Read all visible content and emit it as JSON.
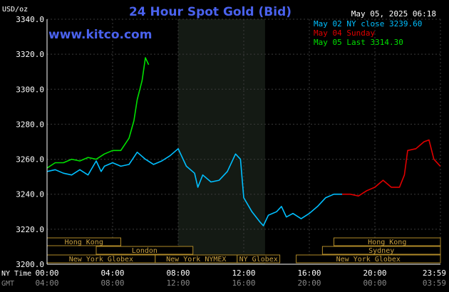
{
  "chart_data": {
    "type": "line",
    "title": "24 Hour Spot Gold (Bid)",
    "watermark": "www.kitco.com",
    "y_unit_label": "USD/oz",
    "timestamp": "May 05, 2025 06:18",
    "ylim": [
      3200,
      3340
    ],
    "y_ticks": [
      "3340.0",
      "3320.0",
      "3300.0",
      "3280.0",
      "3260.0",
      "3240.0",
      "3220.0",
      "3200.0"
    ],
    "x_hours": [
      0,
      24
    ],
    "x_ticks_ny": [
      "00:00",
      "04:00",
      "08:00",
      "12:00",
      "16:00",
      "20:00",
      "23:59"
    ],
    "x_ticks_gmt": [
      "04:00",
      "08:00",
      "12:00",
      "16:00",
      "20:00",
      "00:00",
      "03:59"
    ],
    "x_row_labels": [
      "NY Time",
      "GMT"
    ],
    "grid": true,
    "legend_position": "top-right",
    "legend": [
      {
        "label": "May 02 NY close 3239.60",
        "color": "#00bfff"
      },
      {
        "label": "May 04 Sunday",
        "color": "#e00000"
      },
      {
        "label": "May 05 Last 3314.30",
        "color": "#00e000"
      }
    ],
    "series": [
      {
        "name": "May 02 NY close 3239.60",
        "color": "#00bfff",
        "points": [
          [
            0,
            3253
          ],
          [
            0.5,
            3254
          ],
          [
            1,
            3252
          ],
          [
            1.5,
            3251
          ],
          [
            2,
            3254
          ],
          [
            2.5,
            3251
          ],
          [
            3,
            3259
          ],
          [
            3.3,
            3253
          ],
          [
            3.5,
            3256
          ],
          [
            4,
            3258
          ],
          [
            4.5,
            3256
          ],
          [
            5,
            3257
          ],
          [
            5.5,
            3264
          ],
          [
            6,
            3260
          ],
          [
            6.5,
            3257
          ],
          [
            7,
            3259
          ],
          [
            7.5,
            3262
          ],
          [
            8,
            3266
          ],
          [
            8.5,
            3256
          ],
          [
            9,
            3252
          ],
          [
            9.2,
            3244
          ],
          [
            9.5,
            3251
          ],
          [
            10,
            3247
          ],
          [
            10.5,
            3248
          ],
          [
            11,
            3253
          ],
          [
            11.5,
            3263
          ],
          [
            11.8,
            3260
          ],
          [
            12,
            3238
          ],
          [
            12.5,
            3230
          ],
          [
            13,
            3224
          ],
          [
            13.2,
            3222
          ],
          [
            13.5,
            3228
          ],
          [
            14,
            3230
          ],
          [
            14.3,
            3233
          ],
          [
            14.6,
            3227
          ],
          [
            15,
            3229
          ],
          [
            15.5,
            3226
          ],
          [
            16,
            3229
          ],
          [
            16.5,
            3233
          ],
          [
            17,
            3238
          ],
          [
            17.5,
            3240
          ],
          [
            18,
            3240
          ]
        ]
      },
      {
        "name": "May 04 Sunday",
        "color": "#e00000",
        "points": [
          [
            18,
            3240
          ],
          [
            18.5,
            3240
          ],
          [
            19,
            3239
          ],
          [
            19.5,
            3242
          ],
          [
            20,
            3244
          ],
          [
            20.5,
            3248
          ],
          [
            21,
            3244
          ],
          [
            21.5,
            3244
          ],
          [
            21.8,
            3251
          ],
          [
            22,
            3265
          ],
          [
            22.5,
            3266
          ],
          [
            23,
            3270
          ],
          [
            23.3,
            3271
          ],
          [
            23.6,
            3260
          ],
          [
            23.99,
            3256
          ]
        ]
      },
      {
        "name": "May 05 Last 3314.30",
        "color": "#00e000",
        "points": [
          [
            0,
            3255
          ],
          [
            0.5,
            3258
          ],
          [
            1,
            3258
          ],
          [
            1.5,
            3260
          ],
          [
            2,
            3259
          ],
          [
            2.5,
            3261
          ],
          [
            3,
            3260
          ],
          [
            3.5,
            3263
          ],
          [
            4,
            3265
          ],
          [
            4.5,
            3265
          ],
          [
            5,
            3272
          ],
          [
            5.3,
            3282
          ],
          [
            5.5,
            3294
          ],
          [
            5.8,
            3305
          ],
          [
            6,
            3318
          ],
          [
            6.2,
            3314
          ]
        ]
      }
    ],
    "sessions_left": [
      {
        "label": "Hong Kong",
        "start": 0,
        "end": 4.5
      },
      {
        "label": "London",
        "start": 3,
        "end": 8.9
      },
      {
        "label": "New York Globex",
        "start": 0,
        "end": 6.6
      },
      {
        "label": "New York NYMEX",
        "start": 6.6,
        "end": 11.6
      },
      {
        "label": "NY Globex",
        "start": 11.6,
        "end": 14.2
      }
    ],
    "sessions_right": [
      {
        "label": "Hong Kong",
        "start": 17.5,
        "end": 24
      },
      {
        "label": "Sydney",
        "start": 16.8,
        "end": 24
      },
      {
        "label": "New York Globex",
        "start": 15.2,
        "end": 24
      }
    ],
    "nymex_shaded_hours": [
      8.0,
      13.3
    ]
  }
}
